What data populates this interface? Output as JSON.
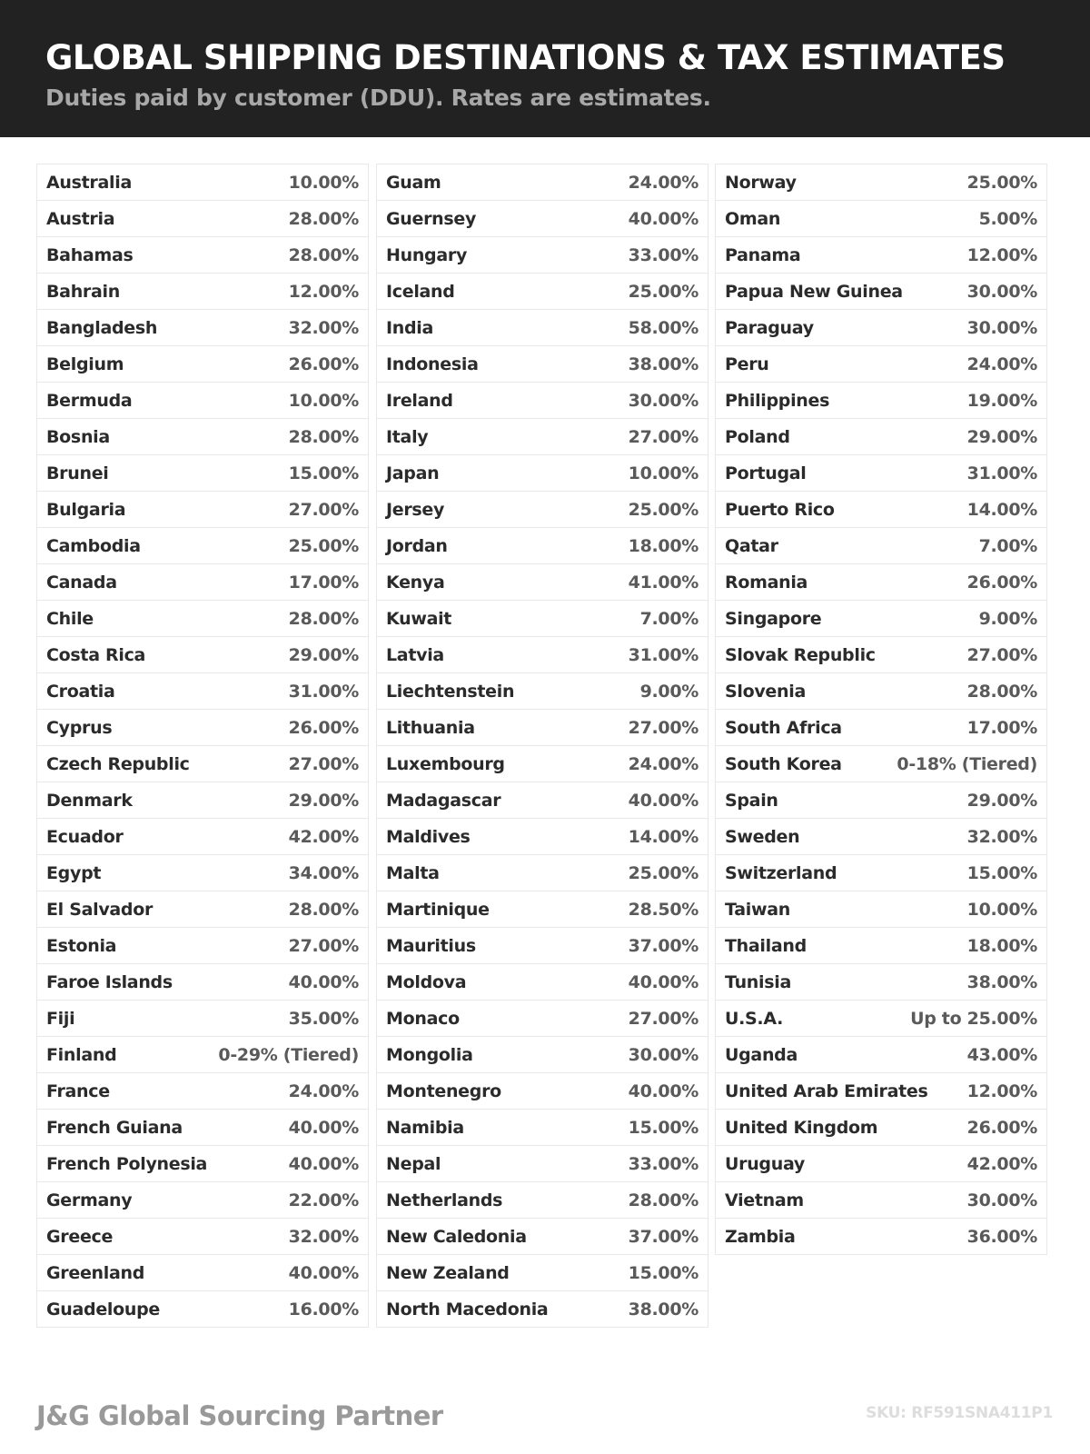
{
  "header": {
    "title": "GLOBAL SHIPPING DESTINATIONS & TAX ESTIMATES",
    "subtitle": "Duties paid by customer (DDU). Rates are estimates.",
    "background": "#222222"
  },
  "columns": [
    [
      [
        "Australia",
        "10.00%"
      ],
      [
        "Austria",
        "28.00%"
      ],
      [
        "Bahamas",
        "28.00%"
      ],
      [
        "Bahrain",
        "12.00%"
      ],
      [
        "Bangladesh",
        "32.00%"
      ],
      [
        "Belgium",
        "26.00%"
      ],
      [
        "Bermuda",
        "10.00%"
      ],
      [
        "Bosnia",
        "28.00%"
      ],
      [
        "Brunei",
        "15.00%"
      ],
      [
        "Bulgaria",
        "27.00%"
      ],
      [
        "Cambodia",
        "25.00%"
      ],
      [
        "Canada",
        "17.00%"
      ],
      [
        "Chile",
        "28.00%"
      ],
      [
        "Costa Rica",
        "29.00%"
      ],
      [
        "Croatia",
        "31.00%"
      ],
      [
        "Cyprus",
        "26.00%"
      ],
      [
        "Czech Republic",
        "27.00%"
      ],
      [
        "Denmark",
        "29.00%"
      ],
      [
        "Ecuador",
        "42.00%"
      ],
      [
        "Egypt",
        "34.00%"
      ],
      [
        "El Salvador",
        "28.00%"
      ],
      [
        "Estonia",
        "27.00%"
      ],
      [
        "Faroe Islands",
        "40.00%"
      ],
      [
        "Fiji",
        "35.00%"
      ],
      [
        "Finland",
        "0-29% (Tiered)"
      ],
      [
        "France",
        "24.00%"
      ],
      [
        "French Guiana",
        "40.00%"
      ],
      [
        "French Polynesia",
        "40.00%"
      ],
      [
        "Germany",
        "22.00%"
      ],
      [
        "Greece",
        "32.00%"
      ],
      [
        "Greenland",
        "40.00%"
      ],
      [
        "Guadeloupe",
        "16.00%"
      ]
    ],
    [
      [
        "Guam",
        "24.00%"
      ],
      [
        "Guernsey",
        "40.00%"
      ],
      [
        "Hungary",
        "33.00%"
      ],
      [
        "Iceland",
        "25.00%"
      ],
      [
        "India",
        "58.00%"
      ],
      [
        "Indonesia",
        "38.00%"
      ],
      [
        "Ireland",
        "30.00%"
      ],
      [
        "Italy",
        "27.00%"
      ],
      [
        "Japan",
        "10.00%"
      ],
      [
        "Jersey",
        "25.00%"
      ],
      [
        "Jordan",
        "18.00%"
      ],
      [
        "Kenya",
        "41.00%"
      ],
      [
        "Kuwait",
        "7.00%"
      ],
      [
        "Latvia",
        "31.00%"
      ],
      [
        "Liechtenstein",
        "9.00%"
      ],
      [
        "Lithuania",
        "27.00%"
      ],
      [
        "Luxembourg",
        "24.00%"
      ],
      [
        "Madagascar",
        "40.00%"
      ],
      [
        "Maldives",
        "14.00%"
      ],
      [
        "Malta",
        "25.00%"
      ],
      [
        "Martinique",
        "28.50%"
      ],
      [
        "Mauritius",
        "37.00%"
      ],
      [
        "Moldova",
        "40.00%"
      ],
      [
        "Monaco",
        "27.00%"
      ],
      [
        "Mongolia",
        "30.00%"
      ],
      [
        "Montenegro",
        "40.00%"
      ],
      [
        "Namibia",
        "15.00%"
      ],
      [
        "Nepal",
        "33.00%"
      ],
      [
        "Netherlands",
        "28.00%"
      ],
      [
        "New Caledonia",
        "37.00%"
      ],
      [
        "New Zealand",
        "15.00%"
      ],
      [
        "North Macedonia",
        "38.00%"
      ]
    ],
    [
      [
        "Norway",
        "25.00%"
      ],
      [
        "Oman",
        "5.00%"
      ],
      [
        "Panama",
        "12.00%"
      ],
      [
        "Papua New Guinea",
        "30.00%"
      ],
      [
        "Paraguay",
        "30.00%"
      ],
      [
        "Peru",
        "24.00%"
      ],
      [
        "Philippines",
        "19.00%"
      ],
      [
        "Poland",
        "29.00%"
      ],
      [
        "Portugal",
        "31.00%"
      ],
      [
        "Puerto Rico",
        "14.00%"
      ],
      [
        "Qatar",
        "7.00%"
      ],
      [
        "Romania",
        "26.00%"
      ],
      [
        "Singapore",
        "9.00%"
      ],
      [
        "Slovak Republic",
        "27.00%"
      ],
      [
        "Slovenia",
        "28.00%"
      ],
      [
        "South Africa",
        "17.00%"
      ],
      [
        "South Korea",
        "0-18% (Tiered)"
      ],
      [
        "Spain",
        "29.00%"
      ],
      [
        "Sweden",
        "32.00%"
      ],
      [
        "Switzerland",
        "15.00%"
      ],
      [
        "Taiwan",
        "10.00%"
      ],
      [
        "Thailand",
        "18.00%"
      ],
      [
        "Tunisia",
        "38.00%"
      ],
      [
        "U.S.A.",
        "Up to 25.00%"
      ],
      [
        "Uganda",
        "43.00%"
      ],
      [
        "United Arab Emirates",
        "12.00%"
      ],
      [
        "United Kingdom",
        "26.00%"
      ],
      [
        "Uruguay",
        "42.00%"
      ],
      [
        "Vietnam",
        "30.00%"
      ],
      [
        "Zambia",
        "36.00%"
      ]
    ]
  ],
  "footer": {
    "brand": "J&G Global Sourcing Partner",
    "sku": "SKU: RF591SNA411P1"
  }
}
